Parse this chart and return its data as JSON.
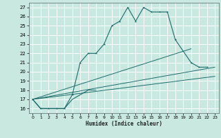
{
  "xlabel": "Humidex (Indice chaleur)",
  "bg_color": "#c8e8e0",
  "line_color": "#1a6b6b",
  "grid_color": "#ffffff",
  "xlim": [
    -0.5,
    23.5
  ],
  "ylim": [
    15.5,
    27.5
  ],
  "xticks": [
    0,
    1,
    2,
    3,
    4,
    5,
    6,
    7,
    8,
    9,
    10,
    11,
    12,
    13,
    14,
    15,
    16,
    17,
    18,
    19,
    20,
    21,
    22,
    23
  ],
  "yticks": [
    16,
    17,
    18,
    19,
    20,
    21,
    22,
    23,
    24,
    25,
    26,
    27
  ],
  "series": [
    {
      "x": [
        0,
        1,
        2,
        3,
        4,
        5,
        6,
        7,
        8,
        9,
        10,
        11,
        12,
        13,
        14,
        15,
        16,
        17,
        18,
        20,
        21,
        22
      ],
      "y": [
        17,
        16,
        16,
        16,
        16,
        17.5,
        21,
        22,
        22,
        23,
        25,
        25.5,
        27,
        25.5,
        27,
        26.5,
        26.5,
        26.5,
        23.5,
        21,
        20.5,
        20.5
      ],
      "has_marker": true
    },
    {
      "x": [
        0,
        1,
        2,
        3,
        4,
        5,
        6,
        7,
        8
      ],
      "y": [
        17,
        16,
        16,
        16,
        16,
        17,
        17.5,
        18,
        18
      ],
      "has_marker": false
    },
    {
      "x": [
        0,
        20
      ],
      "y": [
        17,
        22.5
      ],
      "has_marker": false
    },
    {
      "x": [
        0,
        23
      ],
      "y": [
        17,
        20.5
      ],
      "has_marker": false
    },
    {
      "x": [
        0,
        23
      ],
      "y": [
        17,
        19.5
      ],
      "has_marker": false
    }
  ]
}
